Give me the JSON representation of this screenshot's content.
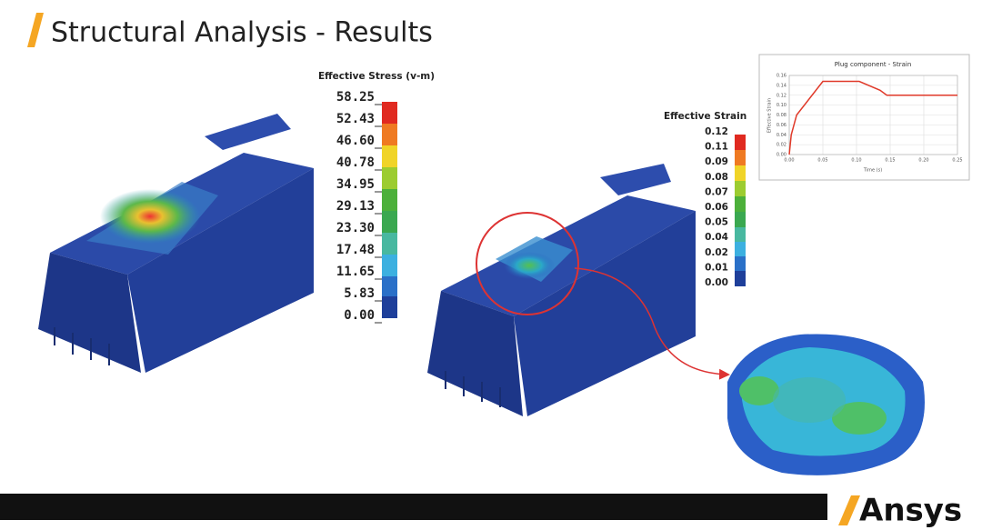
{
  "header": {
    "title": "Structural Analysis - Results"
  },
  "stress_legend": {
    "title": "Effective Stress (v-m)",
    "labels": [
      "58.25",
      "52.43",
      "46.60",
      "40.78",
      "34.95",
      "29.13",
      "23.30",
      "17.48",
      "11.65",
      "5.83",
      "0.00"
    ]
  },
  "strain_legend": {
    "title": "Effective Strain",
    "labels": [
      "0.12",
      "0.11",
      "0.09",
      "0.08",
      "0.07",
      "0.06",
      "0.05",
      "0.04",
      "0.02",
      "0.01",
      "0.00"
    ]
  },
  "chart_data": {
    "type": "line",
    "title": "Plug component - Strain",
    "x_label": "Time (s)",
    "y_label": "Effective Strain",
    "x": [
      0,
      0.003,
      0.011,
      0.05,
      0.104,
      0.135,
      0.145,
      0.25
    ],
    "series": [
      {
        "name": "Strain",
        "color": "#e03a2a",
        "values": [
          0,
          0.04,
          0.08,
          0.148,
          0.148,
          0.13,
          0.12,
          0.12
        ]
      }
    ],
    "xlim": [
      0,
      0.25
    ],
    "ylim": [
      0,
      0.16
    ],
    "xticks": [
      {
        "value": 0,
        "label": "0.00"
      },
      {
        "value": 0.05,
        "label": "0.05"
      },
      {
        "value": 0.1,
        "label": "0.10"
      },
      {
        "value": 0.15,
        "label": "0.15"
      },
      {
        "value": 0.2,
        "label": "0.20"
      },
      {
        "value": 0.25,
        "label": "0.25"
      }
    ],
    "yticks": [
      {
        "value": 0,
        "label": "0.00"
      },
      {
        "value": 0.02,
        "label": "0.02"
      },
      {
        "value": 0.04,
        "label": "0.04"
      },
      {
        "value": 0.06,
        "label": "0.06"
      },
      {
        "value": 0.08,
        "label": "0.08"
      },
      {
        "value": 0.1,
        "label": "0.10"
      },
      {
        "value": 0.12,
        "label": "0.12"
      },
      {
        "value": 0.14,
        "label": "0.14"
      },
      {
        "value": 0.16,
        "label": "0.16"
      }
    ],
    "grid": true
  },
  "footer": {
    "logo": "Ansys"
  }
}
